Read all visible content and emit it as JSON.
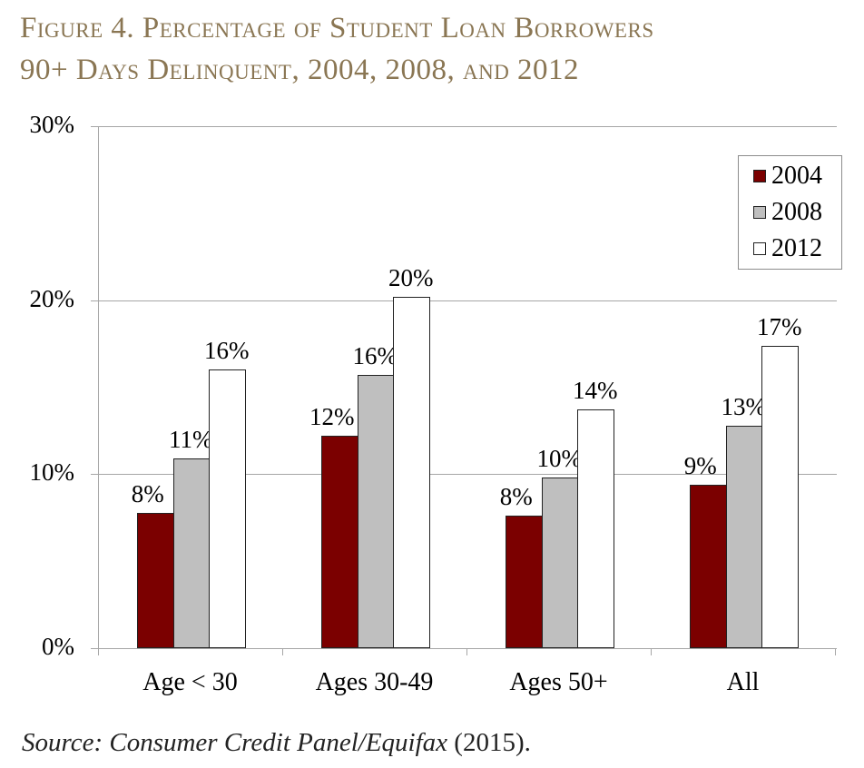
{
  "title": {
    "line1": "Figure 4. Percentage of Student Loan Borrowers",
    "line2": "90+ Days Delinquent, 2004, 2008, and 2012"
  },
  "source": {
    "prefix": "Source: Consumer Credit Panel/Equifax",
    "year": " (2015)."
  },
  "colors": {
    "s2004": "#7b0000",
    "s2008": "#bfbfbf",
    "s2012": "#ffffff",
    "title": "#8a7653",
    "grid": "#a6a6a6"
  },
  "chart_data": {
    "type": "bar",
    "title": "Figure 4. Percentage of Student Loan Borrowers 90+ Days Delinquent, 2004, 2008, and 2012",
    "categories": [
      "Age < 30",
      "Ages 30-49",
      "Ages 50+",
      "All"
    ],
    "series": [
      {
        "name": "2004",
        "values": [
          7.8,
          12.2,
          7.6,
          9.4
        ],
        "labels": [
          "8%",
          "12%",
          "8%",
          "9%"
        ]
      },
      {
        "name": "2008",
        "values": [
          10.9,
          15.7,
          9.8,
          12.8
        ],
        "labels": [
          "11%",
          "16%",
          "10%",
          "13%"
        ]
      },
      {
        "name": "2012",
        "values": [
          16.0,
          20.2,
          13.7,
          17.4
        ],
        "labels": [
          "16%",
          "20%",
          "14%",
          "17%"
        ]
      }
    ],
    "yticks": [
      "0%",
      "10%",
      "20%",
      "30%"
    ],
    "ylim": [
      0,
      30
    ],
    "xlabel": "",
    "ylabel": "",
    "grid": true,
    "legend_position": "upper right",
    "legend": [
      "2004",
      "2008",
      "2012"
    ]
  }
}
